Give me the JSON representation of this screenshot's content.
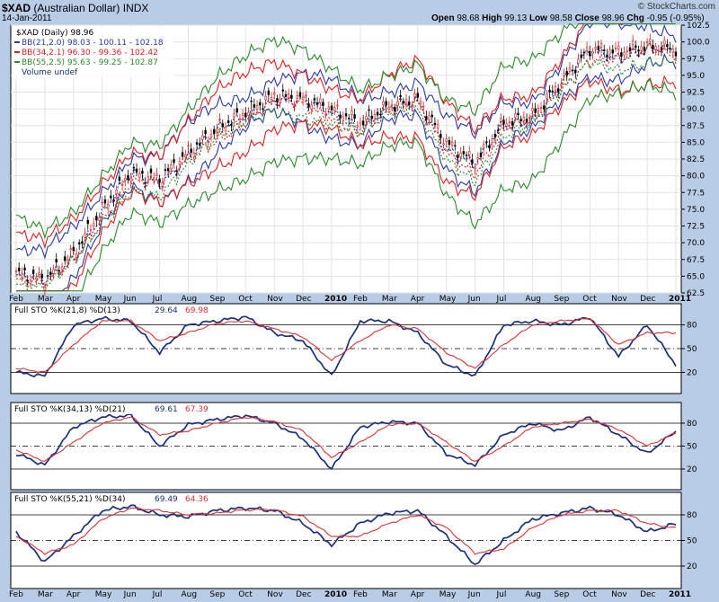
{
  "header": {
    "symbol": "$XAD",
    "name": "(Australian Dollar)",
    "exchange": "INDX",
    "date": "14-Jan-2011",
    "open_label": "Open",
    "open": "98.68",
    "high_label": "High",
    "high": "99.13",
    "low_label": "Low",
    "low": "98.58",
    "close_label": "Close",
    "close": "98.96",
    "chg_label": "Chg",
    "chg": "-0.95 (-0.95%)",
    "watermark": "© StockCharts.com"
  },
  "legend": {
    "price": "$XAD (Daily) 98.96",
    "bb1_label": "BB(21,2.0)",
    "bb1_vals": "98.03 - 100.11 - 102.18",
    "bb2_label": "BB(34,2.1)",
    "bb2_vals": "96.30 - 99.36 - 102.42",
    "bb3_label": "BB(55,2.5)",
    "bb3_vals": "95.63 - 99.25 - 102.87",
    "volume": "Volume undef"
  },
  "sto_panels": [
    {
      "label": "Full STO %K(21,8) %D(13)",
      "k": "29.64",
      "d": "69.98"
    },
    {
      "label": "Full STO %K(34,13) %D(21)",
      "k": "69.61",
      "d": "67.39"
    },
    {
      "label": "Full STO %K(55,21) %D(34)",
      "k": "69.49",
      "d": "64.36"
    }
  ],
  "colors": {
    "bg": "#b9cce6",
    "k": "#1b2f7a",
    "d": "#e03030",
    "bb1": "#2a3aa8",
    "bb2": "#e02020",
    "bb3": "#2a8a2a",
    "candle": "#000000",
    "candle_up": "#d42020"
  },
  "chart_data": [
    {
      "type": "line",
      "title": "$XAD (Australian Dollar) INDX",
      "x": [
        "Feb",
        "Mar",
        "Apr",
        "May",
        "Jun",
        "Jul",
        "Aug",
        "Sep",
        "Oct",
        "Nov",
        "Dec",
        "2010",
        "Feb",
        "Mar",
        "Apr",
        "May",
        "Jun",
        "Jul",
        "Aug",
        "Sep",
        "Oct",
        "Nov",
        "Dec",
        "2011"
      ],
      "y_ticks": [
        62.5,
        65.0,
        67.5,
        70.0,
        72.5,
        75.0,
        77.5,
        80.0,
        82.5,
        85.0,
        87.5,
        90.0,
        92.5,
        95.0,
        97.5,
        100.0,
        102.5
      ],
      "ylim": [
        62.5,
        102.5
      ],
      "series": [
        {
          "name": "$XAD (Daily)",
          "values": [
            65.5,
            64.5,
            68.5,
            75.0,
            80.5,
            79.5,
            83.5,
            87.0,
            89.5,
            92.0,
            91.5,
            90.0,
            88.0,
            90.5,
            91.5,
            85.0,
            82.0,
            88.0,
            89.0,
            94.0,
            99.0,
            98.5,
            99.5,
            98.96
          ]
        }
      ]
    },
    {
      "type": "line",
      "title": "Full STO %K(21,8) %D(13)",
      "x": [
        "Feb",
        "Mar",
        "Apr",
        "May",
        "Jun",
        "Jul",
        "Aug",
        "Sep",
        "Oct",
        "Nov",
        "Dec",
        "2010",
        "Feb",
        "Mar",
        "Apr",
        "May",
        "Jun",
        "Jul",
        "Aug",
        "Sep",
        "Oct",
        "Nov",
        "Dec",
        "2011"
      ],
      "ylim": [
        0,
        100
      ],
      "y_ticks": [
        20,
        50,
        80
      ],
      "series": [
        {
          "name": "%K",
          "values": [
            20,
            15,
            80,
            88,
            85,
            45,
            80,
            85,
            90,
            70,
            60,
            15,
            85,
            85,
            70,
            30,
            15,
            80,
            85,
            80,
            90,
            40,
            80,
            29.64
          ]
        },
        {
          "name": "%D",
          "values": [
            25,
            20,
            55,
            85,
            85,
            60,
            70,
            82,
            85,
            75,
            65,
            35,
            60,
            80,
            75,
            45,
            25,
            55,
            80,
            85,
            88,
            55,
            70,
            69.98
          ]
        }
      ]
    },
    {
      "type": "line",
      "title": "Full STO %K(34,13) %D(21)",
      "x": [
        "Feb",
        "Mar",
        "Apr",
        "May",
        "Jun",
        "Jul",
        "Aug",
        "Sep",
        "Oct",
        "Nov",
        "Dec",
        "2010",
        "Feb",
        "Mar",
        "Apr",
        "May",
        "Jun",
        "Jul",
        "Aug",
        "Sep",
        "Oct",
        "Nov",
        "Dec",
        "2011"
      ],
      "ylim": [
        0,
        100
      ],
      "y_ticks": [
        20,
        50,
        80
      ],
      "series": [
        {
          "name": "%K",
          "values": [
            40,
            25,
            75,
            88,
            90,
            50,
            78,
            85,
            90,
            80,
            60,
            20,
            75,
            82,
            80,
            40,
            25,
            65,
            80,
            70,
            88,
            65,
            40,
            69.61
          ]
        },
        {
          "name": "%D",
          "values": [
            45,
            30,
            55,
            80,
            88,
            65,
            70,
            80,
            88,
            82,
            70,
            35,
            55,
            78,
            80,
            55,
            30,
            50,
            75,
            80,
            85,
            72,
            50,
            67.39
          ]
        }
      ]
    },
    {
      "type": "line",
      "title": "Full STO %K(55,21) %D(34)",
      "x": [
        "Feb",
        "Mar",
        "Apr",
        "May",
        "Jun",
        "Jul",
        "Aug",
        "Sep",
        "Oct",
        "Nov",
        "Dec",
        "2010",
        "Feb",
        "Mar",
        "Apr",
        "May",
        "Jun",
        "Jul",
        "Aug",
        "Sep",
        "Oct",
        "Nov",
        "Dec",
        "2011"
      ],
      "ylim": [
        0,
        100
      ],
      "y_ticks": [
        20,
        50,
        80
      ],
      "series": [
        {
          "name": "%K",
          "values": [
            60,
            25,
            55,
            85,
            90,
            80,
            78,
            85,
            88,
            85,
            70,
            45,
            70,
            82,
            85,
            55,
            22,
            50,
            75,
            82,
            88,
            80,
            60,
            69.49
          ]
        },
        {
          "name": "%D",
          "values": [
            55,
            35,
            45,
            75,
            88,
            85,
            80,
            82,
            86,
            86,
            78,
            55,
            55,
            70,
            80,
            65,
            35,
            40,
            65,
            80,
            85,
            85,
            70,
            64.36
          ]
        }
      ]
    }
  ]
}
